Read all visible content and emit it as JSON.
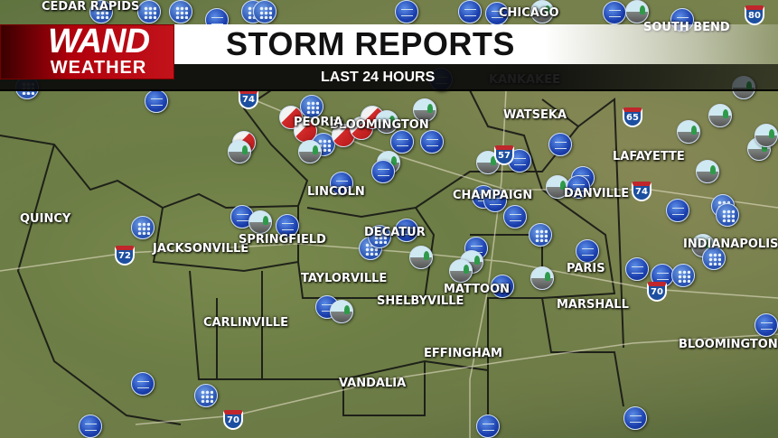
{
  "header": {
    "title": "STORM REPORTS",
    "subtitle": "LAST 24 HOURS"
  },
  "logo": {
    "line1": "WAND",
    "line2": "WEATHER"
  },
  "cities": [
    "CEDAR RAPIDS",
    "CHICAGO",
    "SOUTH BEND",
    "KANKAKEE",
    "WATSEKA",
    "LAFAYETTE",
    "DANVILLE",
    "CHAMPAIGN",
    "BLOOMINGTON",
    "PEORIA",
    "LINCOLN",
    "QUINCY",
    "JACKSONVILLE",
    "SPRINGFIELD",
    "DECATUR",
    "TAYLORVILLE",
    "SHELBYVILLE",
    "MATTOON",
    "PARIS",
    "MARSHALL",
    "CARLINVILLE",
    "EFFINGHAM",
    "VANDALIA",
    "INDIANAPOLIS",
    "BLOOMINGTON"
  ],
  "interstates": [
    "74",
    "57",
    "65",
    "74",
    "72",
    "70",
    "70",
    "80"
  ],
  "legend_types": {
    "w": "wind-report",
    "h": "hail-report",
    "t": "tornado-report",
    "d": "damage-report"
  },
  "colors": {
    "brand_red": "#c2121a",
    "wind_blue": "#1b3fae",
    "tornado_red": "#d32a2a"
  }
}
